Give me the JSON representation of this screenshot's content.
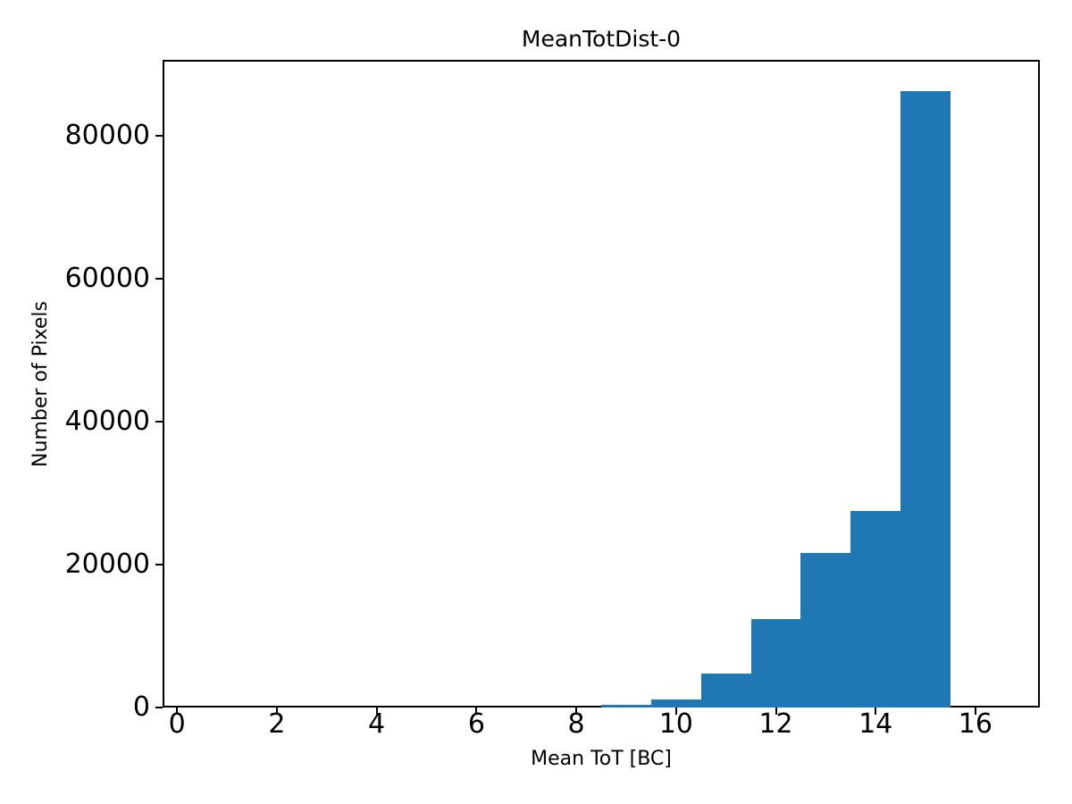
{
  "chart_data": {
    "type": "bar",
    "subtype": "histogram",
    "title": "MeanTotDist-0",
    "xlabel": "Mean ToT [BC]",
    "ylabel": "Number of Pixels",
    "bar_color": "#1f77b4",
    "axis_color": "#000000",
    "background_color": "#ffffff",
    "grid": false,
    "legend": "none",
    "bin_edges": [
      8.5,
      9.5,
      10.5,
      11.5,
      12.5,
      13.5,
      14.5,
      15.5
    ],
    "counts": [
      400,
      1100,
      4700,
      12400,
      21600,
      27500,
      86300
    ],
    "xlim": [
      -0.29,
      17.29
    ],
    "ylim": [
      0,
      90615
    ],
    "x_ticks": {
      "values": [
        0,
        2,
        4,
        6,
        8,
        10,
        12,
        14,
        16
      ],
      "labels": [
        "0",
        "2",
        "4",
        "6",
        "8",
        "10",
        "12",
        "14",
        "16"
      ]
    },
    "y_ticks": {
      "values": [
        0,
        20000,
        40000,
        60000,
        80000
      ],
      "labels": [
        "0",
        "20000",
        "40000",
        "60000",
        "80000"
      ]
    }
  }
}
